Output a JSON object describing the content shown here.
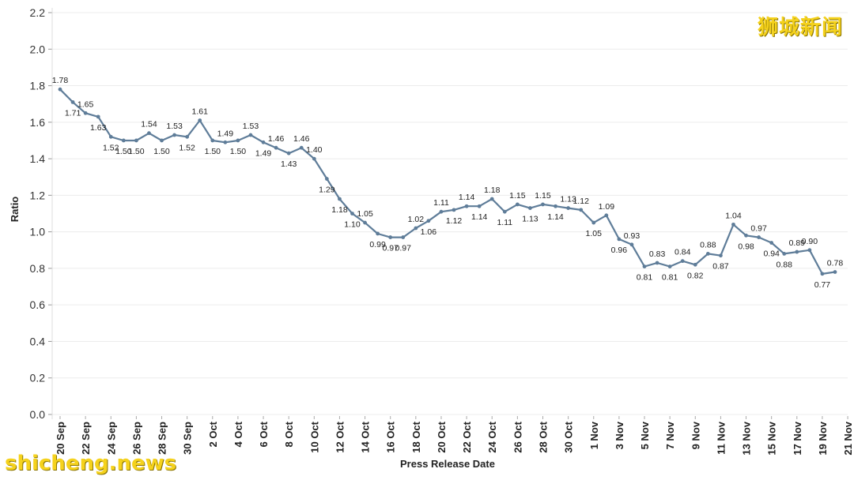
{
  "watermarks": {
    "top_right": "狮城新闻",
    "bottom_left": "shicheng.news"
  },
  "colors": {
    "line": "#5f7d99",
    "grid": "#ececec"
  },
  "chart_data": {
    "type": "line",
    "title": "",
    "xlabel": "Press Release Date",
    "ylabel": "Ratio",
    "ylim": [
      0,
      2.2
    ],
    "yticks": [
      "0.0",
      "0.2",
      "0.4",
      "0.6",
      "0.8",
      "1.0",
      "1.2",
      "1.4",
      "1.6",
      "1.8",
      "2.0",
      "2.2"
    ],
    "grid": true,
    "legend": "none",
    "x_tick_labels": [
      "20 Sep",
      "22 Sep",
      "24 Sep",
      "26 Sep",
      "28 Sep",
      "30 Sep",
      "2 Oct",
      "4 Oct",
      "6 Oct",
      "8 Oct",
      "10 Oct",
      "12 Oct",
      "14 Oct",
      "16 Oct",
      "18 Oct",
      "20 Oct",
      "22 Oct",
      "24 Oct",
      "26 Oct",
      "28 Oct",
      "30 Oct",
      "1 Nov",
      "3 Nov",
      "5 Nov",
      "7 Nov",
      "9 Nov",
      "11 Nov",
      "13 Nov",
      "15 Nov",
      "17 Nov",
      "19 Nov",
      "21 Nov"
    ],
    "x": [
      "20 Sep",
      "21 Sep",
      "22 Sep",
      "23 Sep",
      "24 Sep",
      "25 Sep",
      "26 Sep",
      "27 Sep",
      "28 Sep",
      "29 Sep",
      "30 Sep",
      "1 Oct",
      "2 Oct",
      "3 Oct",
      "4 Oct",
      "5 Oct",
      "6 Oct",
      "7 Oct",
      "8 Oct",
      "9 Oct",
      "10 Oct",
      "11 Oct",
      "12 Oct",
      "13 Oct",
      "14 Oct",
      "15 Oct",
      "16 Oct",
      "17 Oct",
      "18 Oct",
      "19 Oct",
      "20 Oct",
      "21 Oct",
      "22 Oct",
      "23 Oct",
      "24 Oct",
      "25 Oct",
      "26 Oct",
      "27 Oct",
      "28 Oct",
      "29 Oct",
      "30 Oct",
      "31 Oct",
      "1 Nov",
      "2 Nov",
      "3 Nov",
      "4 Nov",
      "5 Nov",
      "6 Nov",
      "7 Nov",
      "8 Nov",
      "9 Nov",
      "10 Nov",
      "11 Nov",
      "12 Nov",
      "13 Nov",
      "14 Nov",
      "15 Nov",
      "16 Nov",
      "17 Nov",
      "18 Nov",
      "19 Nov",
      "20 Nov"
    ],
    "values": [
      1.78,
      1.71,
      1.65,
      1.63,
      1.52,
      1.5,
      1.5,
      1.54,
      1.5,
      1.53,
      1.52,
      1.61,
      1.5,
      1.49,
      1.5,
      1.53,
      1.49,
      1.46,
      1.43,
      1.46,
      1.4,
      1.29,
      1.18,
      1.1,
      1.05,
      0.99,
      0.97,
      0.97,
      1.02,
      1.06,
      1.11,
      1.12,
      1.14,
      1.14,
      1.18,
      1.11,
      1.15,
      1.13,
      1.15,
      1.14,
      1.13,
      1.12,
      1.05,
      1.09,
      0.96,
      0.93,
      0.81,
      0.83,
      0.81,
      0.84,
      0.82,
      0.88,
      0.87,
      1.04,
      0.98,
      0.97,
      0.94,
      0.88,
      0.89,
      0.9,
      0.77,
      0.78
    ],
    "labels": [
      "1.78",
      "1.71",
      "1.65",
      "1.63",
      "1.52",
      "1.50",
      "1.50",
      "1.54",
      "1.50",
      "1.53",
      "1.52",
      "1.61",
      "1.50",
      "1.49",
      "1.50",
      "1.53",
      "1.49",
      "1.46",
      "1.43",
      "1.46",
      "1.40",
      "1.29",
      "1.18",
      "1.10",
      "1.05",
      "0.99",
      "0.97",
      "0.97",
      "1.02",
      "1.06",
      "1.11",
      "1.12",
      "1.14",
      "1.14",
      "1.18",
      "1.11",
      "1.15",
      "1.13",
      "1.15",
      "1.14",
      "1.13",
      "1.12",
      "1.05",
      "1.09",
      "0.96",
      "0.93",
      "0.81",
      "0.83",
      "0.81",
      "0.84",
      "0.82",
      "0.88",
      "0.87",
      "1.04",
      "0.98",
      "0.97",
      "0.94",
      "0.88",
      "0.89",
      "0.90",
      "0.77",
      "0.78"
    ],
    "label_position": [
      "above",
      "below",
      "above",
      "below",
      "below",
      "below",
      "below",
      "above",
      "below",
      "above",
      "below",
      "above",
      "below",
      "above",
      "below",
      "above",
      "below",
      "above",
      "below",
      "above",
      "above",
      "below",
      "below",
      "below",
      "above",
      "below",
      "below",
      "below",
      "above",
      "below",
      "above",
      "below",
      "above",
      "below",
      "above",
      "below",
      "above",
      "below",
      "above",
      "below",
      "above",
      "above",
      "below",
      "above",
      "below",
      "above",
      "below",
      "above",
      "below",
      "above",
      "below",
      "above",
      "below",
      "above",
      "below",
      "above",
      "below",
      "below",
      "above",
      "above",
      "below",
      "above"
    ]
  }
}
